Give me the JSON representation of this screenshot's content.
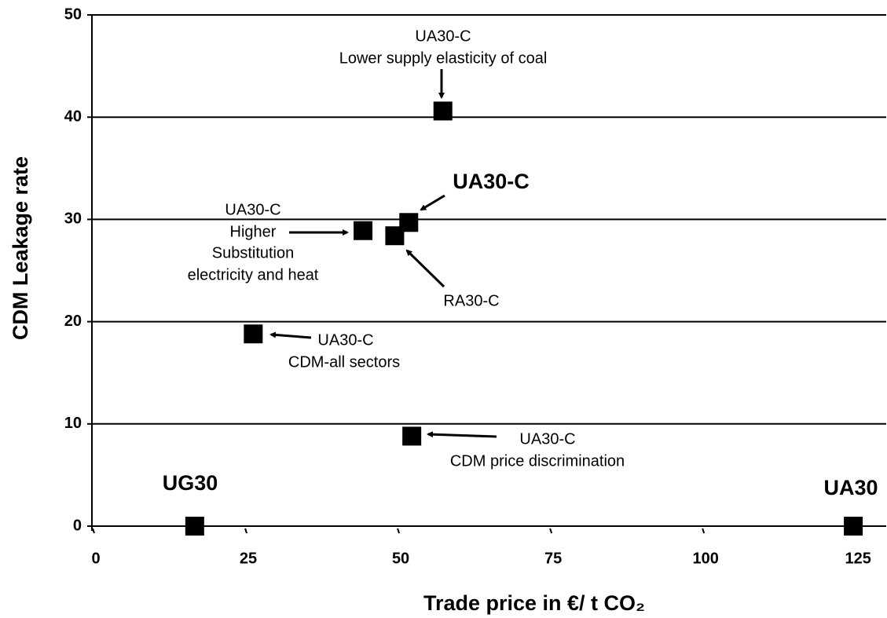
{
  "chart_data": {
    "type": "scatter",
    "x_label": "Trade price in €/ t CO₂",
    "y_label": "CDM Leakage rate",
    "x": [
      57.3,
      51.7,
      44.2,
      49.4,
      26.2,
      52.2,
      16.6,
      124.6
    ],
    "values": [
      40.6,
      29.7,
      28.9,
      28.4,
      18.8,
      8.8,
      0,
      0
    ],
    "color": "#000000",
    "xlim": [
      0,
      130
    ],
    "xticks": [
      0,
      25,
      50,
      75,
      100,
      125
    ],
    "ylim": [
      0,
      50
    ],
    "yticks": [
      0,
      10,
      20,
      30,
      40,
      50
    ],
    "grid": true,
    "annotations": [
      [
        "UA30-C",
        "Lower supply elasticity of coal"
      ],
      [
        "UA30-C"
      ],
      [
        "UA30-C",
        "Higher",
        "Substitution",
        "electricity and heat"
      ],
      [
        "RA30-C"
      ],
      [
        "UA30-C",
        "CDM-all  sectors"
      ],
      [
        "UA30-C",
        "CDM price discrimination"
      ],
      [
        "UG30"
      ],
      [
        "UA30"
      ]
    ]
  }
}
